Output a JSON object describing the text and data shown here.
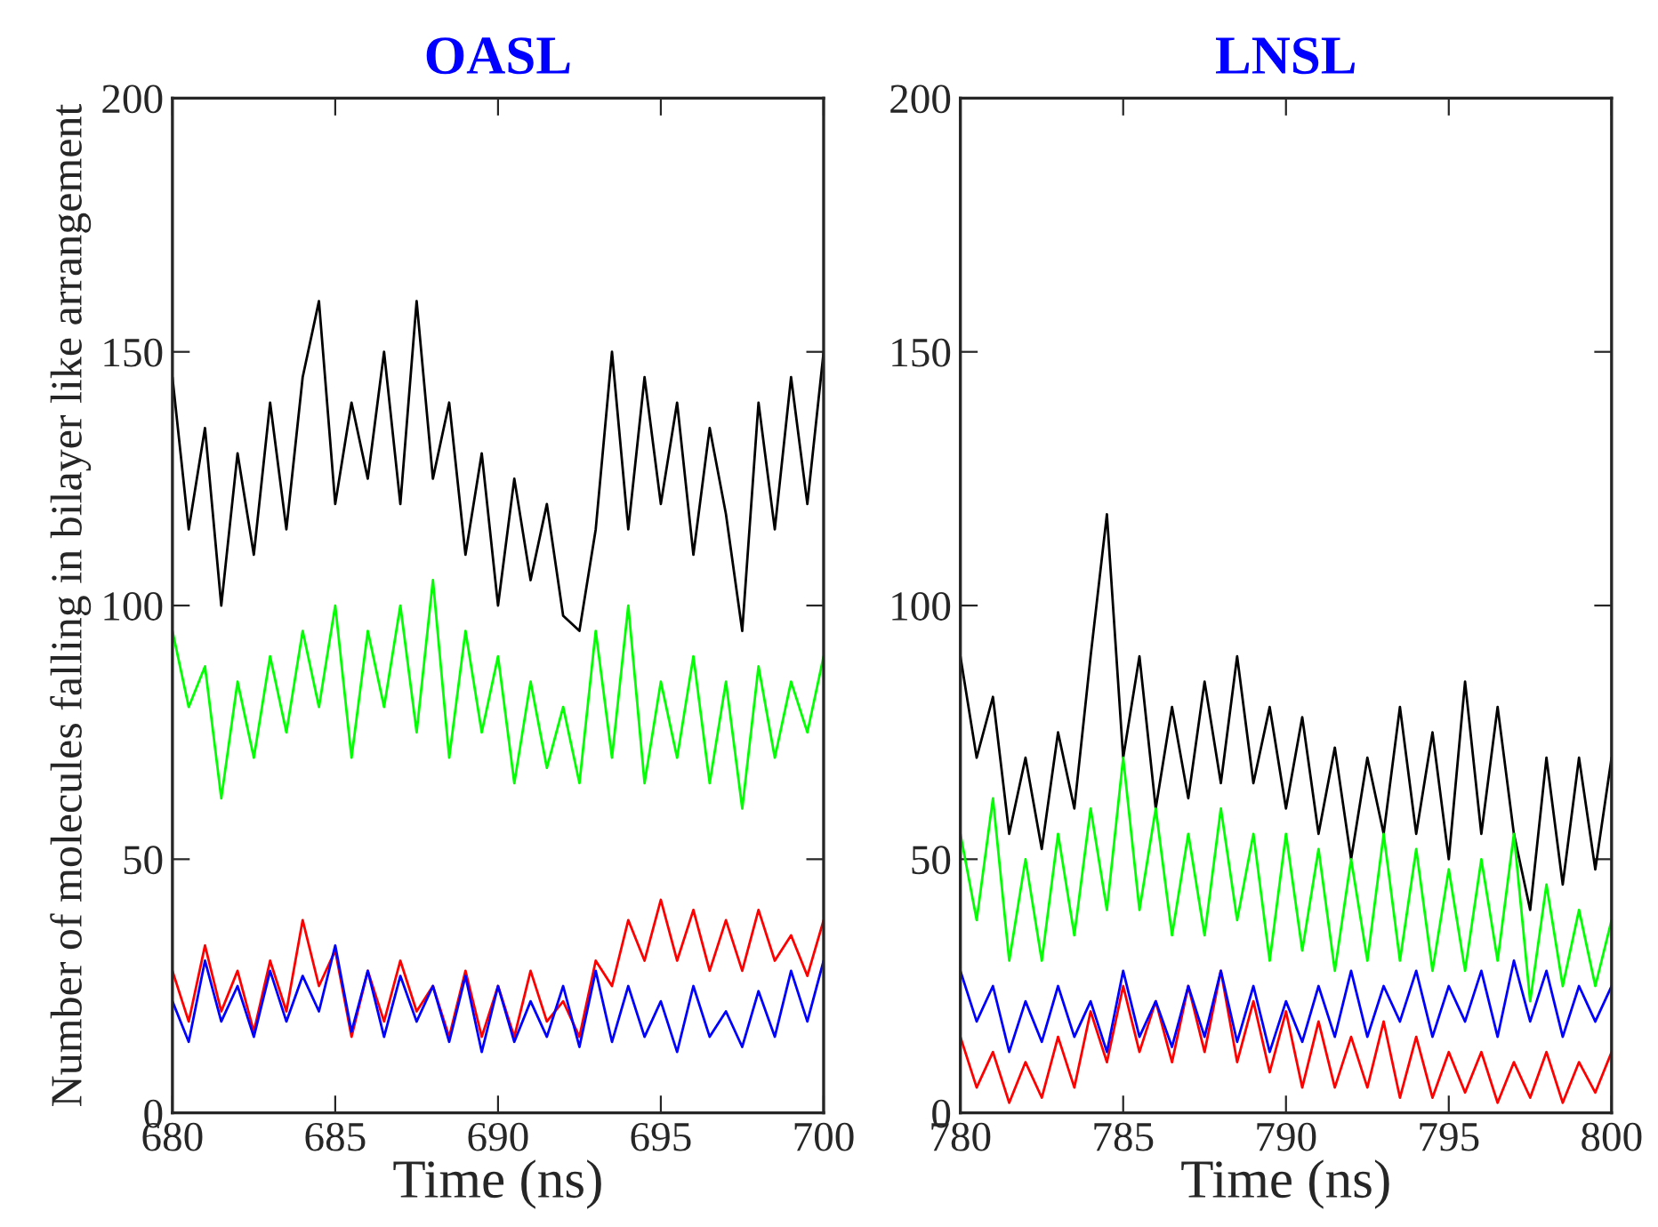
{
  "chart_data": [
    {
      "type": "line",
      "title": "OASL",
      "xlabel": "Time (ns)",
      "ylabel": "Number of molecules falling in bilayer like arrangement",
      "x": [
        680,
        680.5,
        681,
        681.5,
        682,
        682.5,
        683,
        683.5,
        684,
        684.5,
        685,
        685.5,
        686,
        686.5,
        687,
        687.5,
        688,
        688.5,
        689,
        689.5,
        690,
        690.5,
        691,
        691.5,
        692,
        692.5,
        693,
        693.5,
        694,
        694.5,
        695,
        695.5,
        696,
        696.5,
        697,
        697.5,
        698,
        698.5,
        699,
        699.5,
        700
      ],
      "xlim": [
        680,
        700
      ],
      "xticks": [
        680,
        685,
        690,
        695,
        700
      ],
      "ylim": [
        0,
        200
      ],
      "yticks": [
        0,
        50,
        100,
        150,
        200
      ],
      "grid": false,
      "series": [
        {
          "color": "#000000",
          "values": [
            145,
            115,
            135,
            100,
            130,
            110,
            140,
            115,
            145,
            160,
            120,
            140,
            125,
            150,
            120,
            160,
            125,
            140,
            110,
            130,
            100,
            125,
            105,
            120,
            98,
            95,
            115,
            150,
            115,
            145,
            120,
            140,
            110,
            135,
            118,
            95,
            140,
            115,
            145,
            120,
            150
          ]
        },
        {
          "color": "#00ff00",
          "values": [
            95,
            80,
            88,
            62,
            85,
            70,
            90,
            75,
            95,
            80,
            100,
            70,
            95,
            80,
            100,
            75,
            105,
            70,
            95,
            75,
            90,
            65,
            85,
            68,
            80,
            65,
            95,
            70,
            100,
            65,
            85,
            70,
            90,
            65,
            85,
            60,
            88,
            70,
            85,
            75,
            90
          ]
        },
        {
          "color": "#ff0000",
          "values": [
            28,
            18,
            33,
            20,
            28,
            16,
            30,
            20,
            38,
            25,
            32,
            15,
            28,
            18,
            30,
            20,
            25,
            15,
            28,
            15,
            25,
            15,
            28,
            18,
            22,
            15,
            30,
            25,
            38,
            30,
            42,
            30,
            40,
            28,
            38,
            28,
            40,
            30,
            35,
            27,
            38
          ]
        },
        {
          "color": "#0000ff",
          "values": [
            22,
            14,
            30,
            18,
            25,
            15,
            28,
            18,
            27,
            20,
            33,
            16,
            28,
            15,
            27,
            18,
            25,
            14,
            27,
            12,
            25,
            14,
            22,
            15,
            25,
            13,
            28,
            14,
            25,
            15,
            22,
            12,
            25,
            15,
            20,
            13,
            24,
            15,
            28,
            18,
            30
          ]
        }
      ]
    },
    {
      "type": "line",
      "title": "LNSL",
      "xlabel": "Time (ns)",
      "x": [
        780,
        780.5,
        781,
        781.5,
        782,
        782.5,
        783,
        783.5,
        784,
        784.5,
        785,
        785.5,
        786,
        786.5,
        787,
        787.5,
        788,
        788.5,
        789,
        789.5,
        790,
        790.5,
        791,
        791.5,
        792,
        792.5,
        793,
        793.5,
        794,
        794.5,
        795,
        795.5,
        796,
        796.5,
        797,
        797.5,
        798,
        798.5,
        799,
        799.5,
        800
      ],
      "xlim": [
        780,
        800
      ],
      "xticks": [
        780,
        785,
        790,
        795,
        800
      ],
      "ylim": [
        0,
        200
      ],
      "yticks": [
        0,
        50,
        100,
        150,
        200
      ],
      "grid": false,
      "series": [
        {
          "color": "#000000",
          "values": [
            90,
            70,
            82,
            55,
            70,
            52,
            75,
            60,
            90,
            118,
            70,
            90,
            60,
            80,
            62,
            85,
            65,
            90,
            65,
            80,
            60,
            78,
            55,
            72,
            50,
            70,
            55,
            80,
            55,
            75,
            50,
            85,
            55,
            80,
            55,
            40,
            70,
            45,
            70,
            48,
            70
          ]
        },
        {
          "color": "#00ff00",
          "values": [
            55,
            38,
            62,
            30,
            50,
            30,
            55,
            35,
            60,
            40,
            70,
            40,
            60,
            35,
            55,
            35,
            60,
            38,
            55,
            30,
            55,
            32,
            52,
            28,
            50,
            30,
            55,
            30,
            52,
            28,
            48,
            28,
            50,
            30,
            55,
            22,
            45,
            25,
            40,
            25,
            38
          ]
        },
        {
          "color": "#ff0000",
          "values": [
            15,
            5,
            12,
            2,
            10,
            3,
            15,
            5,
            20,
            10,
            25,
            12,
            22,
            10,
            25,
            12,
            28,
            10,
            22,
            8,
            20,
            5,
            18,
            5,
            15,
            5,
            18,
            3,
            15,
            3,
            12,
            4,
            12,
            2,
            10,
            3,
            12,
            2,
            10,
            4,
            12
          ]
        },
        {
          "color": "#0000ff",
          "values": [
            28,
            18,
            25,
            12,
            22,
            14,
            25,
            15,
            22,
            12,
            28,
            15,
            22,
            13,
            25,
            15,
            28,
            14,
            25,
            12,
            22,
            14,
            25,
            15,
            28,
            15,
            25,
            18,
            28,
            15,
            25,
            18,
            28,
            15,
            30,
            18,
            28,
            15,
            25,
            18,
            25
          ]
        }
      ]
    }
  ]
}
